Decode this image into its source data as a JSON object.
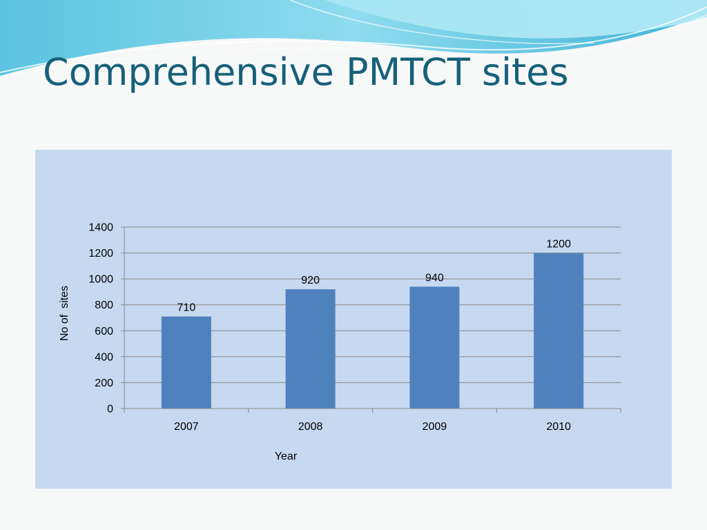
{
  "slide": {
    "title": "Comprehensive PMTCT sites"
  },
  "colors": {
    "title": "#17607a",
    "panel_background": "#c6d9f1",
    "bar_fill": "#4f81bd",
    "gridline": "#868686"
  },
  "chart_data": {
    "type": "bar",
    "categories": [
      "2007",
      "2008",
      "2009",
      "2010"
    ],
    "values": [
      710,
      920,
      940,
      1200
    ],
    "data_labels": [
      "710",
      "920",
      "940",
      "1200"
    ],
    "xlabel": "Year",
    "ylabel": "No of  sites",
    "ylim": [
      0,
      1400
    ],
    "yticks": [
      0,
      200,
      400,
      600,
      800,
      1000,
      1200,
      1400
    ],
    "grid": true,
    "legend": false
  }
}
